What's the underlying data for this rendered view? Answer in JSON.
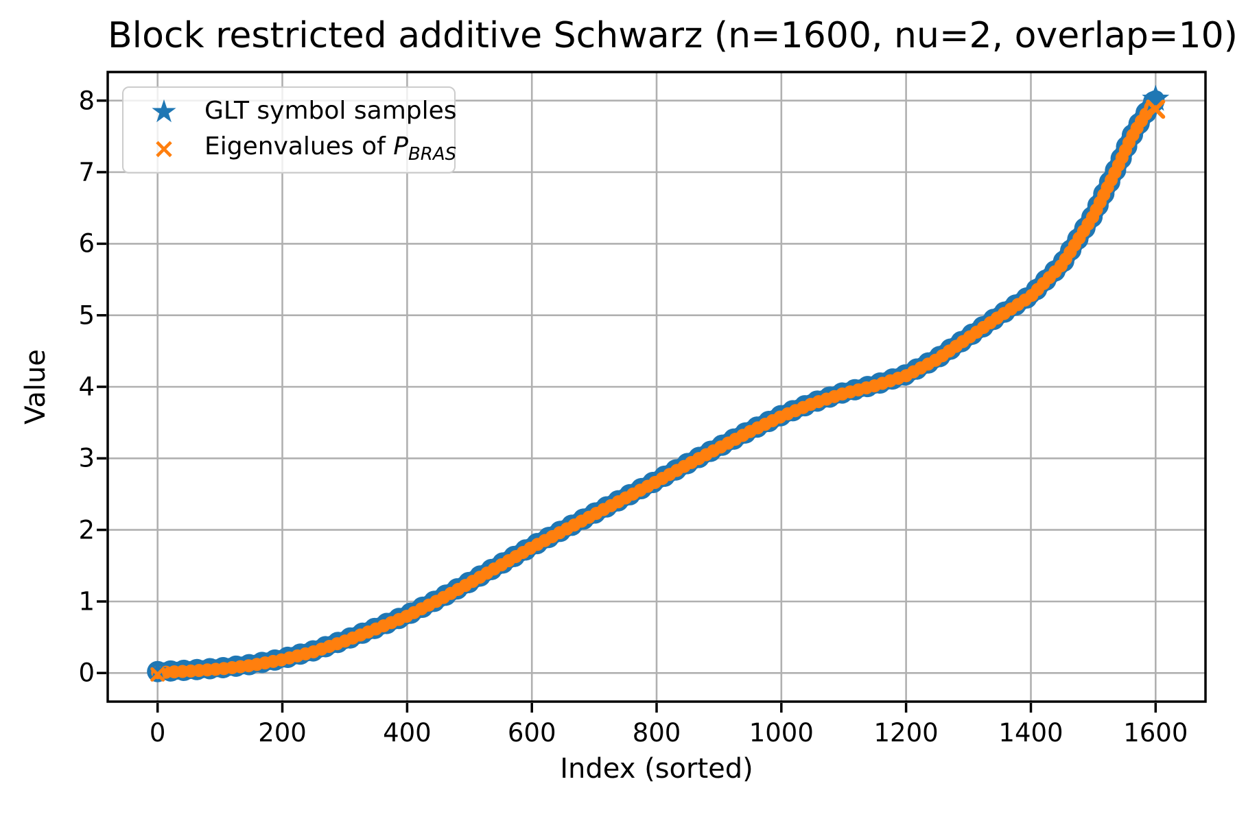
{
  "chart_data": {
    "type": "scatter",
    "title": "Block restricted additive Schwarz (n=1600, nu=2, overlap=10)",
    "xlabel": "Index (sorted)",
    "ylabel": "Value",
    "xlim": [
      -80,
      1680
    ],
    "ylim": [
      -0.4,
      8.4
    ],
    "grid": true,
    "grid_color": "#b0b0b0",
    "spine_color": "#000000",
    "legend_position": "upper-left",
    "x_ticks": [
      0,
      200,
      400,
      600,
      800,
      1000,
      1200,
      1400,
      1600
    ],
    "x_tick_labels": [
      "0",
      "200",
      "400",
      "600",
      "800",
      "1000",
      "1200",
      "1400",
      "1600"
    ],
    "y_ticks": [
      0,
      1,
      2,
      3,
      4,
      5,
      6,
      7,
      8
    ],
    "y_tick_labels": [
      "0",
      "1",
      "2",
      "3",
      "4",
      "5",
      "6",
      "7",
      "8"
    ],
    "series": [
      {
        "name": "GLT symbol samples",
        "marker": "star",
        "color": "#1f77b4",
        "points": 1600
      },
      {
        "name": "Eigenvalues of P_BRAS",
        "marker": "x",
        "color": "#ff7f0e",
        "points": 1600
      }
    ],
    "note": "Both series trace the same monotone sorted curve; markers overlap into a dense band (blue stars slightly wider, orange x on top).",
    "curve_samples": {
      "x": [
        0,
        50,
        100,
        150,
        200,
        250,
        300,
        350,
        400,
        450,
        500,
        550,
        600,
        650,
        700,
        750,
        800,
        850,
        900,
        950,
        1000,
        1050,
        1100,
        1150,
        1200,
        1250,
        1300,
        1350,
        1400,
        1450,
        1500,
        1520,
        1540,
        1560,
        1575,
        1590,
        1600
      ],
      "y": [
        0.02,
        0.04,
        0.07,
        0.12,
        0.2,
        0.31,
        0.46,
        0.63,
        0.81,
        1.03,
        1.27,
        1.52,
        1.77,
        2.0,
        2.23,
        2.46,
        2.69,
        2.93,
        3.16,
        3.39,
        3.6,
        3.78,
        3.92,
        4.03,
        4.17,
        4.4,
        4.7,
        5.0,
        5.28,
        5.72,
        6.4,
        6.75,
        7.1,
        7.48,
        7.7,
        7.9,
        8.02
      ]
    }
  },
  "legend": {
    "items": [
      {
        "label": "GLT symbol samples",
        "glyph": "★",
        "color": "#1f77b4"
      },
      {
        "label_prefix": "Eigenvalues of ",
        "symbol": "P",
        "subscript": "BRAS",
        "glyph": "×",
        "color": "#ff7f0e"
      }
    ]
  }
}
